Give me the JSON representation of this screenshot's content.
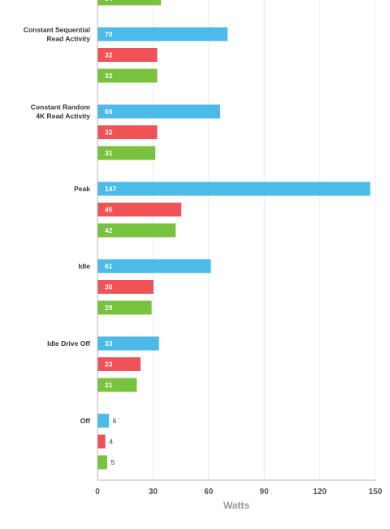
{
  "chart_data": {
    "type": "bar",
    "orientation": "horizontal",
    "xlabel": "Watts",
    "xlim": [
      0,
      150
    ],
    "xticks": [
      0,
      30,
      60,
      90,
      120,
      150
    ],
    "grid": true,
    "colors": [
      "#4dbbea",
      "#ef5257",
      "#79c23e"
    ],
    "categories": [
      {
        "label_lines": [
          "Constant Sequential",
          "Read Activity"
        ],
        "values": [
          70,
          32,
          32
        ]
      },
      {
        "label_lines": [
          "Constant Random",
          "4K Read Activity"
        ],
        "values": [
          66,
          32,
          31
        ]
      },
      {
        "label_lines": [
          "Peak"
        ],
        "values": [
          147,
          45,
          42
        ]
      },
      {
        "label_lines": [
          "Idle"
        ],
        "values": [
          61,
          30,
          29
        ]
      },
      {
        "label_lines": [
          "Idle Drive Off"
        ],
        "values": [
          33,
          23,
          21
        ]
      },
      {
        "label_lines": [
          "Off"
        ],
        "values": [
          6,
          4,
          5
        ]
      }
    ],
    "partial_top_bar": {
      "series_index": 2,
      "value": 34
    }
  }
}
